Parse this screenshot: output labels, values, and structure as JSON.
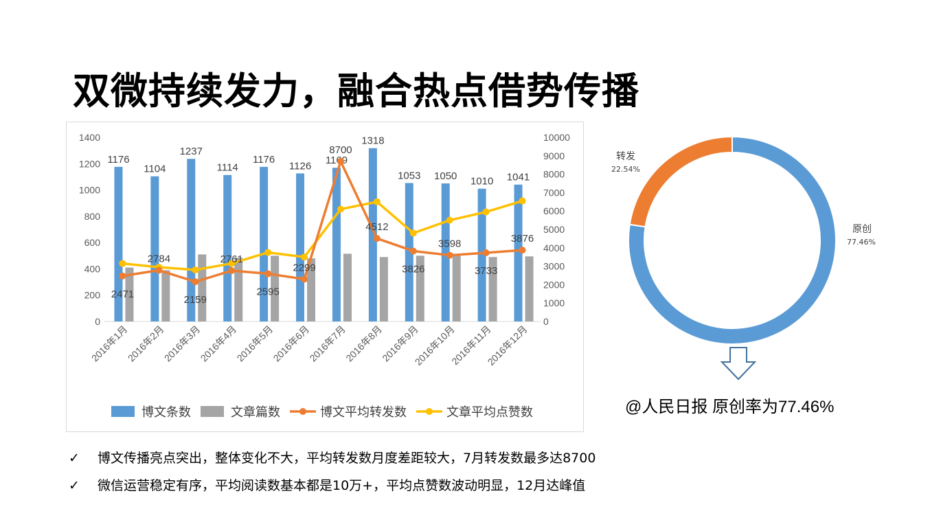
{
  "slide": {
    "title": "双微持续发力，融合热点借势传播",
    "caption": "@人民日报 原创率为77.46%",
    "bullets": [
      "博文传播亮点突出，整体变化不大，平均转发数月度差距较大，7月转发数最多达8700",
      "微信运营稳定有序，平均阅读数基本都是10万+，平均点赞数波动明显，12月达峰值"
    ],
    "check_glyph": "✓",
    "icons": {
      "arrow": "down-outline-arrow-icon",
      "check": "check-icon"
    }
  },
  "chart_data": [
    {
      "type": "bar+line",
      "categories": [
        "2016年1月",
        "2016年2月",
        "2016年3月",
        "2016年4月",
        "2016年5月",
        "2016年6月",
        "2016年7月",
        "2016年8月",
        "2016年9月",
        "2016年10月",
        "2016年11月",
        "2016年12月"
      ],
      "series": [
        {
          "name": "博文条数",
          "type": "bar",
          "axis": "left",
          "color": "#5b9bd5",
          "values": [
            1176,
            1104,
            1237,
            1114,
            1176,
            1126,
            1169,
            1318,
            1053,
            1050,
            1010,
            1041
          ],
          "labels": true
        },
        {
          "name": "文章篇数",
          "type": "bar",
          "axis": "left",
          "color": "#a5a5a5",
          "values": [
            410,
            390,
            510,
            485,
            500,
            480,
            515,
            490,
            500,
            500,
            490,
            495
          ],
          "labels": false
        },
        {
          "name": "博文平均转发数",
          "type": "line",
          "axis": "right",
          "color": "#ed7d31",
          "values": [
            2471,
            2784,
            2159,
            2761,
            2595,
            2299,
            8700,
            4512,
            3826,
            3598,
            3733,
            3876
          ],
          "labels": true
        },
        {
          "name": "文章平均点赞数",
          "type": "line",
          "axis": "right",
          "color": "#ffc000",
          "values": [
            3150,
            2950,
            2800,
            3150,
            3750,
            3500,
            6100,
            6500,
            4800,
            5500,
            5950,
            6550
          ],
          "labels": false
        }
      ],
      "left_axis": {
        "min": 0,
        "max": 1400,
        "ticks": [
          "0",
          "200",
          "400",
          "600",
          "800",
          "1000",
          "1200",
          "1400"
        ]
      },
      "right_axis": {
        "min": 0,
        "max": 10000,
        "ticks": [
          "0",
          "1000",
          "2000",
          "3000",
          "4000",
          "5000",
          "6000",
          "7000",
          "8000",
          "9000",
          "10000"
        ]
      },
      "grid": false,
      "legend_position": "bottom"
    },
    {
      "type": "pie",
      "variant": "donut",
      "slices": [
        {
          "name": "原创",
          "value": 77.46,
          "label": "77.46%",
          "color": "#5b9bd5"
        },
        {
          "name": "转发",
          "value": 22.54,
          "label": "22.54%",
          "color": "#ed7d31"
        }
      ]
    }
  ]
}
